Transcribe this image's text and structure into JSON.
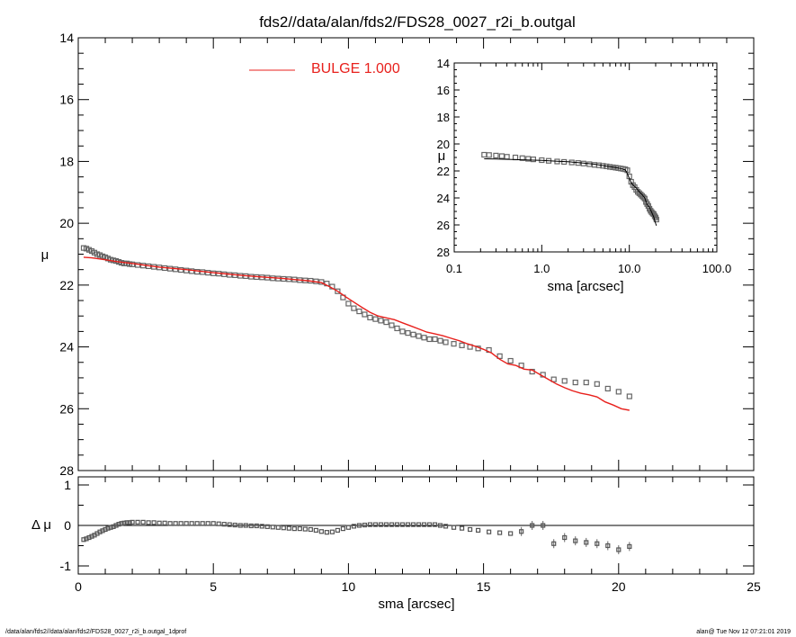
{
  "chart_data": [
    {
      "type": "scatter",
      "title": "fds2//data/alan/fds2/FDS28_0027_r2i_b.outgal",
      "ylabel": "μ",
      "xlim": [
        0,
        25
      ],
      "ylim": [
        28,
        14
      ],
      "y_inverted": true,
      "x_ticks": [
        "0",
        "5",
        "10",
        "15",
        "20",
        "25"
      ],
      "y_ticks": [
        "14",
        "16",
        "18",
        "20",
        "22",
        "24",
        "26",
        "28"
      ],
      "legend": {
        "placement": "top-center",
        "label": "BULGE  1.000",
        "color": "#e8201c"
      },
      "series": [
        {
          "name": "",
          "style": "open-square-points",
          "color": "#555555",
          "x": [
            0.2,
            0.3,
            0.4,
            0.5,
            0.6,
            0.7,
            0.8,
            0.9,
            1.0,
            1.1,
            1.2,
            1.3,
            1.4,
            1.5,
            1.6,
            1.7,
            1.8,
            1.9,
            2.0,
            2.2,
            2.4,
            2.6,
            2.8,
            3.0,
            3.2,
            3.4,
            3.6,
            3.8,
            4.0,
            4.2,
            4.4,
            4.6,
            4.8,
            5.0,
            5.2,
            5.4,
            5.6,
            5.8,
            6.0,
            6.2,
            6.4,
            6.6,
            6.8,
            7.0,
            7.2,
            7.4,
            7.6,
            7.8,
            8.0,
            8.2,
            8.4,
            8.6,
            8.8,
            9.0,
            9.2,
            9.4,
            9.6,
            9.8,
            10.0,
            10.2,
            10.4,
            10.6,
            10.8,
            11.0,
            11.2,
            11.4,
            11.6,
            11.8,
            12.0,
            12.2,
            12.4,
            12.6,
            12.8,
            13.0,
            13.2,
            13.4,
            13.6,
            13.9,
            14.2,
            14.5,
            14.8,
            15.2,
            15.6,
            16.0,
            16.4,
            16.8,
            17.2,
            17.6,
            18.0,
            18.4,
            18.8,
            19.2,
            19.6,
            20.0,
            20.4
          ],
          "y": [
            20.8,
            20.82,
            20.86,
            20.9,
            20.95,
            21.0,
            21.03,
            21.07,
            21.1,
            21.14,
            21.18,
            21.2,
            21.22,
            21.25,
            21.28,
            21.3,
            21.3,
            21.32,
            21.33,
            21.35,
            21.37,
            21.39,
            21.41,
            21.43,
            21.45,
            21.47,
            21.49,
            21.51,
            21.53,
            21.55,
            21.57,
            21.58,
            21.6,
            21.62,
            21.63,
            21.65,
            21.67,
            21.68,
            21.7,
            21.71,
            21.73,
            21.74,
            21.75,
            21.76,
            21.78,
            21.79,
            21.8,
            21.81,
            21.82,
            21.84,
            21.85,
            21.86,
            21.88,
            21.9,
            21.95,
            22.05,
            22.2,
            22.4,
            22.6,
            22.75,
            22.85,
            22.95,
            23.05,
            23.1,
            23.15,
            23.2,
            23.3,
            23.4,
            23.5,
            23.55,
            23.6,
            23.65,
            23.7,
            23.75,
            23.75,
            23.8,
            23.85,
            23.9,
            23.95,
            24.0,
            24.05,
            24.1,
            24.3,
            24.45,
            24.6,
            24.8,
            24.9,
            25.05,
            25.1,
            25.15,
            25.15,
            25.2,
            25.35,
            25.45,
            25.6
          ]
        },
        {
          "name": "BULGE  1.000",
          "style": "line",
          "color": "#e8201c",
          "x": [
            0.2,
            0.5,
            1.0,
            1.5,
            2.0,
            2.5,
            3.0,
            3.5,
            4.0,
            4.5,
            5.0,
            5.5,
            6.0,
            6.5,
            7.0,
            7.5,
            8.0,
            8.5,
            9.0,
            9.3,
            9.6,
            9.9,
            10.2,
            10.5,
            10.8,
            11.1,
            11.4,
            11.7,
            12.0,
            12.3,
            12.6,
            12.9,
            13.2,
            13.5,
            13.8,
            14.1,
            14.4,
            14.7,
            15.0,
            15.3,
            15.6,
            15.9,
            16.2,
            16.5,
            16.8,
            17.1,
            17.4,
            17.7,
            18.0,
            18.3,
            18.6,
            18.9,
            19.2,
            19.5,
            19.8,
            20.1,
            20.4
          ],
          "y": [
            21.1,
            21.12,
            21.18,
            21.25,
            21.3,
            21.36,
            21.42,
            21.46,
            21.5,
            21.55,
            21.6,
            21.64,
            21.68,
            21.72,
            21.75,
            21.78,
            21.82,
            21.86,
            21.92,
            22.05,
            22.2,
            22.38,
            22.55,
            22.72,
            22.88,
            23.0,
            23.06,
            23.12,
            23.22,
            23.32,
            23.42,
            23.52,
            23.58,
            23.64,
            23.72,
            23.8,
            23.9,
            23.98,
            24.08,
            24.2,
            24.4,
            24.55,
            24.6,
            24.72,
            24.75,
            24.9,
            25.05,
            25.2,
            25.32,
            25.42,
            25.5,
            25.55,
            25.62,
            25.78,
            25.88,
            26.0,
            26.05
          ]
        }
      ]
    },
    {
      "type": "scatter",
      "title": "",
      "xlabel": "sma [arcsec]",
      "ylabel": "Δ μ",
      "xlim": [
        0,
        25
      ],
      "ylim": [
        -1.2,
        1.2
      ],
      "x_ticks": [
        "0",
        "5",
        "10",
        "15",
        "20",
        "25"
      ],
      "y_ticks": [
        "1",
        "0",
        "-1"
      ],
      "reference_line_y": 0,
      "series": [
        {
          "name": "",
          "style": "open-square-points-with-errorbars",
          "x": [
            0.2,
            0.3,
            0.4,
            0.5,
            0.6,
            0.7,
            0.8,
            0.9,
            1.0,
            1.1,
            1.2,
            1.3,
            1.4,
            1.5,
            1.6,
            1.7,
            1.8,
            1.9,
            2.0,
            2.2,
            2.4,
            2.6,
            2.8,
            3.0,
            3.2,
            3.4,
            3.6,
            3.8,
            4.0,
            4.2,
            4.4,
            4.6,
            4.8,
            5.0,
            5.2,
            5.4,
            5.6,
            5.8,
            6.0,
            6.2,
            6.4,
            6.6,
            6.8,
            7.0,
            7.2,
            7.4,
            7.6,
            7.8,
            8.0,
            8.2,
            8.4,
            8.6,
            8.8,
            9.0,
            9.2,
            9.4,
            9.6,
            9.8,
            10.0,
            10.2,
            10.4,
            10.6,
            10.8,
            11.0,
            11.2,
            11.4,
            11.6,
            11.8,
            12.0,
            12.2,
            12.4,
            12.6,
            12.8,
            13.0,
            13.2,
            13.4,
            13.6,
            13.9,
            14.2,
            14.5,
            14.8,
            15.2,
            15.6,
            16.0,
            16.4,
            16.8,
            17.2,
            17.6,
            18.0,
            18.4,
            18.8,
            19.2,
            19.6,
            20.0,
            20.4
          ],
          "y": [
            -0.35,
            -0.33,
            -0.3,
            -0.27,
            -0.24,
            -0.2,
            -0.16,
            -0.13,
            -0.1,
            -0.07,
            -0.05,
            -0.03,
            0.0,
            0.03,
            0.05,
            0.06,
            0.07,
            0.07,
            0.08,
            0.08,
            0.08,
            0.07,
            0.07,
            0.06,
            0.06,
            0.05,
            0.05,
            0.05,
            0.05,
            0.05,
            0.05,
            0.05,
            0.05,
            0.05,
            0.04,
            0.03,
            0.02,
            0.01,
            0.0,
            0.0,
            -0.01,
            -0.01,
            -0.02,
            -0.03,
            -0.04,
            -0.05,
            -0.06,
            -0.07,
            -0.08,
            -0.08,
            -0.09,
            -0.1,
            -0.12,
            -0.15,
            -0.17,
            -0.16,
            -0.12,
            -0.08,
            -0.05,
            -0.02,
            0.0,
            0.01,
            0.02,
            0.02,
            0.02,
            0.02,
            0.02,
            0.02,
            0.02,
            0.02,
            0.02,
            0.02,
            0.02,
            0.02,
            0.02,
            0.0,
            -0.02,
            -0.05,
            -0.07,
            -0.1,
            -0.12,
            -0.16,
            -0.18,
            -0.2,
            -0.15,
            0.0,
            0.0,
            -0.45,
            -0.3,
            -0.38,
            -0.42,
            -0.45,
            -0.5,
            -0.6,
            -0.52
          ]
        }
      ]
    },
    {
      "type": "scatter",
      "title": "",
      "xlabel": "sma [arcsec]",
      "ylabel": "μ",
      "x_log": true,
      "xlim": [
        0.1,
        100
      ],
      "ylim": [
        28,
        14
      ],
      "y_inverted": true,
      "x_ticks": [
        "0.1",
        "1.0",
        "10.0",
        "100.0"
      ],
      "y_ticks": [
        "14",
        "16",
        "18",
        "20",
        "22",
        "24",
        "26",
        "28"
      ],
      "series": [
        {
          "name": "",
          "style": "open-square-points",
          "x": [
            0.22,
            0.25,
            0.3,
            0.35,
            0.4,
            0.5,
            0.6,
            0.7,
            0.8,
            1.0,
            1.2,
            1.5,
            1.8,
            2.2,
            2.6,
            3.0,
            3.5,
            4.0,
            4.5,
            5.0,
            5.5,
            6.0,
            6.5,
            7.0,
            7.5,
            8.0,
            8.5,
            9.0,
            9.5,
            10.0,
            10.5,
            11.0,
            11.5,
            12.0,
            12.5,
            13.0,
            13.5,
            14.0,
            14.5,
            15.0,
            15.5,
            16.0,
            16.5,
            17.0,
            17.5,
            18.0,
            18.5,
            19.0,
            19.5,
            20.0,
            20.4
          ],
          "y": [
            20.8,
            20.82,
            20.86,
            20.9,
            20.95,
            21.0,
            21.05,
            21.1,
            21.14,
            21.2,
            21.25,
            21.3,
            21.33,
            21.37,
            21.41,
            21.45,
            21.5,
            21.55,
            21.58,
            21.62,
            21.66,
            21.7,
            21.73,
            21.76,
            21.79,
            21.82,
            21.85,
            21.88,
            21.95,
            22.4,
            22.8,
            23.05,
            23.2,
            23.4,
            23.55,
            23.65,
            23.75,
            23.85,
            23.95,
            24.05,
            24.3,
            24.45,
            24.6,
            24.8,
            24.95,
            25.05,
            25.15,
            25.2,
            25.35,
            25.45,
            25.6
          ]
        },
        {
          "name": "",
          "style": "line",
          "x": [
            0.22,
            0.3,
            0.5,
            0.8,
            1.0,
            1.5,
            2.0,
            3.0,
            4.0,
            5.0,
            6.0,
            7.0,
            8.0,
            9.0,
            9.5,
            10.0,
            10.5,
            11.0,
            12.0,
            13.0,
            14.0,
            15.0,
            16.0,
            17.0,
            18.0,
            19.0,
            20.0,
            20.4
          ],
          "y": [
            21.1,
            21.12,
            21.16,
            21.2,
            21.22,
            21.28,
            21.32,
            21.42,
            21.5,
            21.6,
            21.68,
            21.75,
            21.82,
            21.92,
            22.2,
            22.55,
            22.85,
            23.05,
            23.25,
            23.55,
            23.75,
            24.0,
            24.5,
            24.7,
            25.05,
            25.4,
            25.9,
            26.05
          ]
        }
      ]
    }
  ],
  "footer": {
    "left": "/data/alan/fds2//data/alan/fds2/FDS28_0027_r2i_b.outgal_1dprof",
    "right": "alan@  Tue Nov 12 07:21:01 2019"
  }
}
